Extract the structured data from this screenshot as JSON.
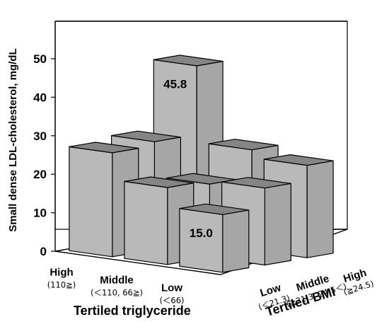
{
  "chart_data": {
    "type": "bar3d",
    "ylabel": "Small dense LDL-cholesterol, mg/dL",
    "ylim": [
      0,
      50
    ],
    "yticks": [
      0,
      10,
      20,
      30,
      40,
      50
    ],
    "triglyceride_axis": {
      "title": "Tertiled triglyceride",
      "categories": [
        {
          "label": "High",
          "sub": "(110≧)"
        },
        {
          "label": "Middle",
          "sub": "(＜110, 66≧)"
        },
        {
          "label": "Low",
          "sub": "(＜66)"
        }
      ]
    },
    "bmi_axis": {
      "title": "Tertiled BMI",
      "categories": [
        {
          "label": "Low",
          "sub": "(＜21.3)"
        },
        {
          "label": "Middle",
          "sub": "(≧21.3, 24.5＜)"
        },
        {
          "label": "High",
          "sub": "(≧24.5)"
        }
      ]
    },
    "values": [
      {
        "triglyceride": "High",
        "bmi": "Low",
        "value": 27
      },
      {
        "triglyceride": "High",
        "bmi": "Middle",
        "value": 28
      },
      {
        "triglyceride": "High",
        "bmi": "High",
        "value": 45.8,
        "label": "45.8"
      },
      {
        "triglyceride": "Middle",
        "bmi": "Low",
        "value": 20
      },
      {
        "triglyceride": "Middle",
        "bmi": "Middle",
        "value": 19
      },
      {
        "triglyceride": "Middle",
        "bmi": "High",
        "value": 26
      },
      {
        "triglyceride": "Low",
        "bmi": "Low",
        "value": 15.0,
        "label": "15.0"
      },
      {
        "triglyceride": "Low",
        "bmi": "Middle",
        "value": 20
      },
      {
        "triglyceride": "Low",
        "bmi": "High",
        "value": 24
      }
    ],
    "grid": false,
    "colors": {
      "front": "#b9b9b9",
      "side": "#a6a6a6",
      "top": "#858585"
    }
  }
}
